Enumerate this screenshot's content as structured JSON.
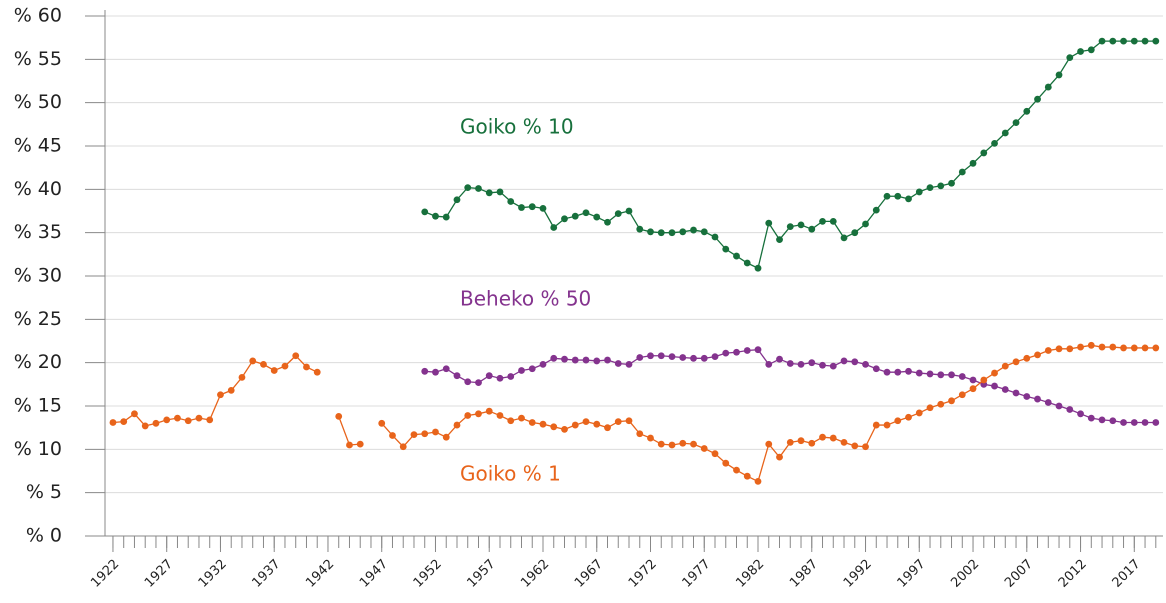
{
  "chart_data": {
    "type": "line",
    "x": [
      1922,
      1923,
      1924,
      1925,
      1926,
      1927,
      1928,
      1929,
      1930,
      1931,
      1932,
      1933,
      1934,
      1935,
      1936,
      1937,
      1938,
      1939,
      1940,
      1941,
      1942,
      1943,
      1944,
      1945,
      1946,
      1947,
      1948,
      1949,
      1950,
      1951,
      1952,
      1953,
      1954,
      1955,
      1956,
      1957,
      1958,
      1959,
      1960,
      1961,
      1962,
      1963,
      1964,
      1965,
      1966,
      1967,
      1968,
      1969,
      1970,
      1971,
      1972,
      1973,
      1974,
      1975,
      1976,
      1977,
      1978,
      1979,
      1980,
      1981,
      1982,
      1983,
      1984,
      1985,
      1986,
      1987,
      1988,
      1989,
      1990,
      1991,
      1992,
      1993,
      1994,
      1995,
      1996,
      1997,
      1998,
      1999,
      2000,
      2001,
      2002,
      2003,
      2004,
      2005,
      2006,
      2007,
      2008,
      2009,
      2010,
      2011,
      2012,
      2013,
      2014,
      2015,
      2016,
      2017,
      2018,
      2019
    ],
    "series": [
      {
        "name": "Goiko % 10",
        "color": "#17703c",
        "values": [
          null,
          null,
          null,
          null,
          null,
          null,
          null,
          null,
          null,
          null,
          null,
          null,
          null,
          null,
          null,
          null,
          null,
          null,
          null,
          null,
          null,
          null,
          null,
          null,
          null,
          null,
          null,
          null,
          null,
          37.4,
          36.9,
          36.8,
          38.8,
          40.2,
          40.1,
          39.6,
          39.7,
          38.6,
          37.9,
          38.0,
          37.8,
          35.6,
          36.6,
          36.9,
          37.3,
          36.8,
          36.2,
          37.2,
          37.5,
          35.4,
          35.1,
          35.0,
          35.0,
          35.1,
          35.3,
          35.1,
          34.5,
          33.1,
          32.3,
          31.5,
          30.9,
          36.1,
          34.2,
          35.7,
          35.9,
          35.4,
          36.3,
          36.3,
          34.4,
          35.0,
          36.0,
          37.6,
          39.2,
          39.2,
          38.9,
          39.7,
          40.2,
          40.4,
          40.7,
          42.0,
          43.0,
          44.2,
          45.3,
          46.5,
          47.7,
          49.0,
          50.4,
          51.8,
          53.2,
          55.2,
          55.9,
          56.1,
          57.1,
          57.1,
          57.1,
          57.1,
          57.1,
          57.1
        ]
      },
      {
        "name": "Beheko % 50",
        "color": "#84338e",
        "values": [
          null,
          null,
          null,
          null,
          null,
          null,
          null,
          null,
          null,
          null,
          null,
          null,
          null,
          null,
          null,
          null,
          null,
          null,
          null,
          null,
          null,
          null,
          null,
          null,
          null,
          null,
          null,
          null,
          null,
          19.0,
          18.9,
          19.3,
          18.5,
          17.8,
          17.7,
          18.5,
          18.2,
          18.4,
          19.1,
          19.3,
          19.8,
          20.5,
          20.4,
          20.3,
          20.3,
          20.2,
          20.3,
          19.9,
          19.8,
          20.6,
          20.8,
          20.8,
          20.7,
          20.6,
          20.5,
          20.5,
          20.7,
          21.1,
          21.2,
          21.4,
          21.5,
          19.8,
          20.4,
          19.9,
          19.8,
          20.0,
          19.7,
          19.6,
          20.2,
          20.1,
          19.8,
          19.3,
          18.9,
          18.9,
          19.0,
          18.8,
          18.7,
          18.6,
          18.6,
          18.4,
          18.0,
          17.5,
          17.3,
          16.9,
          16.5,
          16.1,
          15.8,
          15.4,
          15.0,
          14.6,
          14.1,
          13.6,
          13.4,
          13.3,
          13.1,
          13.1,
          13.1,
          13.1
        ]
      },
      {
        "name": "Goiko % 1",
        "color": "#e8641b",
        "values": [
          13.1,
          13.2,
          14.1,
          12.7,
          13.0,
          13.4,
          13.6,
          13.3,
          13.6,
          13.4,
          16.3,
          16.8,
          18.3,
          20.2,
          19.8,
          19.1,
          19.6,
          20.8,
          19.5,
          18.9,
          null,
          13.8,
          10.5,
          10.6,
          null,
          13.0,
          11.6,
          10.3,
          11.7,
          11.8,
          12.0,
          11.4,
          12.8,
          13.9,
          14.1,
          14.4,
          13.9,
          13.3,
          13.6,
          13.1,
          12.9,
          12.6,
          12.3,
          12.8,
          13.2,
          12.9,
          12.5,
          13.2,
          13.3,
          11.8,
          11.3,
          10.6,
          10.5,
          10.7,
          10.6,
          10.1,
          9.5,
          8.4,
          7.6,
          6.9,
          6.3,
          10.6,
          9.1,
          10.8,
          11.0,
          10.7,
          11.4,
          11.3,
          10.8,
          10.4,
          10.3,
          12.8,
          12.8,
          13.3,
          13.7,
          14.2,
          14.8,
          15.2,
          15.6,
          16.3,
          17.0,
          18.0,
          18.8,
          19.6,
          20.1,
          20.5,
          20.9,
          21.4,
          21.6,
          21.6,
          21.8,
          22.0,
          21.8,
          21.8,
          21.7,
          21.7,
          21.7,
          21.7
        ]
      }
    ],
    "xlim": [
      1921.26,
      2019.67
    ],
    "xticks": [
      1922,
      1927,
      1932,
      1937,
      1942,
      1947,
      1952,
      1957,
      1962,
      1967,
      1972,
      1977,
      1982,
      1987,
      1992,
      1997,
      2002,
      2007,
      2012,
      2017
    ],
    "ylim": [
      0,
      60
    ],
    "yticks": [
      {
        "value": 0,
        "label": "% 0"
      },
      {
        "value": 5,
        "label": "% 5"
      },
      {
        "value": 10,
        "label": "% 10"
      },
      {
        "value": 15,
        "label": "% 15"
      },
      {
        "value": 20,
        "label": "% 20"
      },
      {
        "value": 25,
        "label": "% 25"
      },
      {
        "value": 30,
        "label": "% 30"
      },
      {
        "value": 35,
        "label": "% 35"
      },
      {
        "value": 40,
        "label": "% 40"
      },
      {
        "value": 45,
        "label": "% 45"
      },
      {
        "value": 50,
        "label": "% 50"
      },
      {
        "value": 55,
        "label": "% 55"
      },
      {
        "value": 60,
        "label": "% 60"
      }
    ],
    "grid": true
  }
}
